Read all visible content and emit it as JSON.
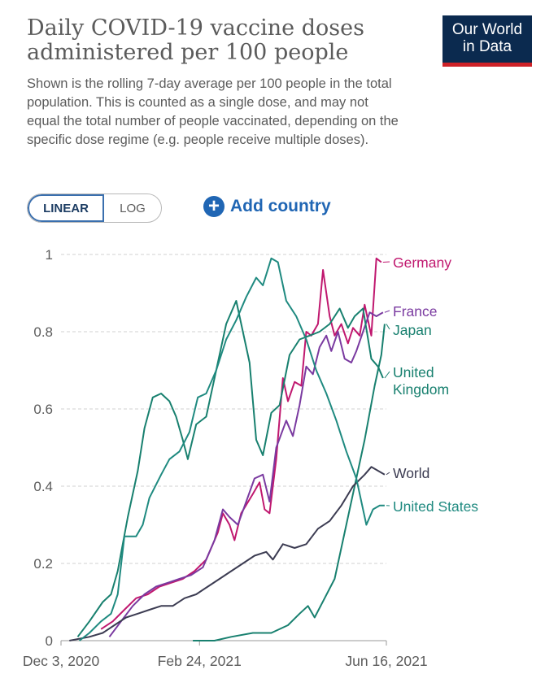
{
  "header": {
    "title": "Daily COVID-19 vaccine doses administered per 100 people",
    "subtitle": "Shown is the rolling 7-day average per 100 people in the total population. This is counted as a single dose, and may not equal the total number of people vaccinated, depending on the specific dose regime (e.g. people receive multiple doses).",
    "logo_line1": "Our World",
    "logo_line2": "in Data"
  },
  "controls": {
    "linear_label": "LINEAR",
    "log_label": "LOG",
    "add_country_label": "Add country",
    "plus_icon": "+"
  },
  "colors": {
    "germany": "#c0186f",
    "france": "#7a3aa0",
    "japan": "#18806f",
    "united_kingdom": "#18806f",
    "world": "#3c3c52",
    "united_states": "#1f8a80",
    "grid": "#d0d0d0",
    "text": "#5b5b5b"
  },
  "chart_data": {
    "type": "line",
    "x_start": "2020-12-03",
    "x_end": "2021-06-16",
    "x_tick_labels": [
      {
        "date": "2020-12-03",
        "label": "Dec 3, 2020"
      },
      {
        "date": "2021-02-24",
        "label": "Feb 24, 2021"
      },
      {
        "date": "2021-06-16",
        "label": "Jun 16, 2021"
      }
    ],
    "ylim": [
      0,
      1
    ],
    "y_ticks": [
      {
        "value": 0,
        "label": "0"
      },
      {
        "value": 0.2,
        "label": "0.2"
      },
      {
        "value": 0.4,
        "label": "0.4"
      },
      {
        "value": 0.6,
        "label": "0.6"
      },
      {
        "value": 0.8,
        "label": "0.8"
      },
      {
        "value": 1,
        "label": "1"
      }
    ],
    "grid": "horizontal dashed",
    "series": [
      {
        "name": "Germany",
        "color": "#c0186f",
        "points": [
          [
            "2020-12-27",
            0.03
          ],
          [
            "2021-01-03",
            0.05
          ],
          [
            "2021-01-10",
            0.08
          ],
          [
            "2021-01-17",
            0.11
          ],
          [
            "2021-01-24",
            0.12
          ],
          [
            "2021-01-31",
            0.14
          ],
          [
            "2021-02-07",
            0.15
          ],
          [
            "2021-02-14",
            0.16
          ],
          [
            "2021-02-21",
            0.18
          ],
          [
            "2021-02-28",
            0.21
          ],
          [
            "2021-03-07",
            0.28
          ],
          [
            "2021-03-10",
            0.33
          ],
          [
            "2021-03-14",
            0.3
          ],
          [
            "2021-03-17",
            0.26
          ],
          [
            "2021-03-21",
            0.33
          ],
          [
            "2021-03-28",
            0.38
          ],
          [
            "2021-04-01",
            0.41
          ],
          [
            "2021-04-04",
            0.34
          ],
          [
            "2021-04-07",
            0.33
          ],
          [
            "2021-04-11",
            0.47
          ],
          [
            "2021-04-15",
            0.68
          ],
          [
            "2021-04-18",
            0.62
          ],
          [
            "2021-04-22",
            0.67
          ],
          [
            "2021-04-26",
            0.66
          ],
          [
            "2021-04-29",
            0.8
          ],
          [
            "2021-05-02",
            0.79
          ],
          [
            "2021-05-06",
            0.82
          ],
          [
            "2021-05-09",
            0.96
          ],
          [
            "2021-05-13",
            0.84
          ],
          [
            "2021-05-16",
            0.79
          ],
          [
            "2021-05-20",
            0.82
          ],
          [
            "2021-05-24",
            0.77
          ],
          [
            "2021-05-27",
            0.81
          ],
          [
            "2021-05-31",
            0.79
          ],
          [
            "2021-06-03",
            0.87
          ],
          [
            "2021-06-07",
            0.79
          ],
          [
            "2021-06-10",
            0.99
          ],
          [
            "2021-06-13",
            0.98
          ]
        ]
      },
      {
        "name": "France",
        "color": "#7a3aa0",
        "points": [
          [
            "2021-01-01",
            0.01
          ],
          [
            "2021-01-08",
            0.05
          ],
          [
            "2021-01-15",
            0.09
          ],
          [
            "2021-01-22",
            0.12
          ],
          [
            "2021-01-29",
            0.14
          ],
          [
            "2021-02-05",
            0.15
          ],
          [
            "2021-02-12",
            0.16
          ],
          [
            "2021-02-19",
            0.17
          ],
          [
            "2021-02-26",
            0.19
          ],
          [
            "2021-03-05",
            0.26
          ],
          [
            "2021-03-10",
            0.34
          ],
          [
            "2021-03-14",
            0.32
          ],
          [
            "2021-03-19",
            0.3
          ],
          [
            "2021-03-24",
            0.36
          ],
          [
            "2021-03-29",
            0.42
          ],
          [
            "2021-04-03",
            0.43
          ],
          [
            "2021-04-07",
            0.36
          ],
          [
            "2021-04-11",
            0.5
          ],
          [
            "2021-04-17",
            0.57
          ],
          [
            "2021-04-21",
            0.53
          ],
          [
            "2021-04-25",
            0.61
          ],
          [
            "2021-04-29",
            0.71
          ],
          [
            "2021-05-03",
            0.69
          ],
          [
            "2021-05-07",
            0.76
          ],
          [
            "2021-05-11",
            0.79
          ],
          [
            "2021-05-14",
            0.75
          ],
          [
            "2021-05-18",
            0.8
          ],
          [
            "2021-05-22",
            0.73
          ],
          [
            "2021-05-26",
            0.72
          ],
          [
            "2021-05-29",
            0.75
          ],
          [
            "2021-06-02",
            0.8
          ],
          [
            "2021-06-06",
            0.85
          ],
          [
            "2021-06-10",
            0.84
          ],
          [
            "2021-06-14",
            0.85
          ]
        ]
      },
      {
        "name": "Japan",
        "color": "#18806f",
        "points": [
          [
            "2021-02-20",
            0.0
          ],
          [
            "2021-03-05",
            0.0
          ],
          [
            "2021-03-15",
            0.01
          ],
          [
            "2021-03-28",
            0.02
          ],
          [
            "2021-04-08",
            0.02
          ],
          [
            "2021-04-18",
            0.04
          ],
          [
            "2021-04-25",
            0.07
          ],
          [
            "2021-04-30",
            0.09
          ],
          [
            "2021-05-04",
            0.06
          ],
          [
            "2021-05-10",
            0.11
          ],
          [
            "2021-05-16",
            0.16
          ],
          [
            "2021-05-22",
            0.28
          ],
          [
            "2021-05-28",
            0.4
          ],
          [
            "2021-06-03",
            0.52
          ],
          [
            "2021-06-09",
            0.66
          ],
          [
            "2021-06-13",
            0.74
          ],
          [
            "2021-06-15",
            0.82
          ]
        ]
      },
      {
        "name": "United Kingdom",
        "color": "#18806f",
        "points": [
          [
            "2020-12-13",
            0.01
          ],
          [
            "2020-12-20",
            0.05
          ],
          [
            "2020-12-28",
            0.1
          ],
          [
            "2021-01-02",
            0.12
          ],
          [
            "2021-01-06",
            0.18
          ],
          [
            "2021-01-12",
            0.32
          ],
          [
            "2021-01-18",
            0.44
          ],
          [
            "2021-01-22",
            0.55
          ],
          [
            "2021-01-27",
            0.63
          ],
          [
            "2021-02-01",
            0.64
          ],
          [
            "2021-02-06",
            0.62
          ],
          [
            "2021-02-10",
            0.58
          ],
          [
            "2021-02-14",
            0.52
          ],
          [
            "2021-02-17",
            0.47
          ],
          [
            "2021-02-22",
            0.56
          ],
          [
            "2021-02-28",
            0.58
          ],
          [
            "2021-03-06",
            0.7
          ],
          [
            "2021-03-12",
            0.82
          ],
          [
            "2021-03-18",
            0.88
          ],
          [
            "2021-03-22",
            0.8
          ],
          [
            "2021-03-26",
            0.72
          ],
          [
            "2021-03-30",
            0.52
          ],
          [
            "2021-04-03",
            0.48
          ],
          [
            "2021-04-08",
            0.59
          ],
          [
            "2021-04-13",
            0.61
          ],
          [
            "2021-04-19",
            0.74
          ],
          [
            "2021-04-25",
            0.78
          ],
          [
            "2021-05-01",
            0.79
          ],
          [
            "2021-05-07",
            0.8
          ],
          [
            "2021-05-13",
            0.82
          ],
          [
            "2021-05-19",
            0.86
          ],
          [
            "2021-05-24",
            0.81
          ],
          [
            "2021-05-28",
            0.84
          ],
          [
            "2021-06-02",
            0.86
          ],
          [
            "2021-06-07",
            0.73
          ],
          [
            "2021-06-11",
            0.71
          ],
          [
            "2021-06-14",
            0.68
          ]
        ]
      },
      {
        "name": "World",
        "color": "#3c3c52",
        "points": [
          [
            "2020-12-08",
            0.0
          ],
          [
            "2020-12-20",
            0.01
          ],
          [
            "2020-12-28",
            0.02
          ],
          [
            "2021-01-04",
            0.04
          ],
          [
            "2021-01-11",
            0.06
          ],
          [
            "2021-01-18",
            0.07
          ],
          [
            "2021-01-25",
            0.08
          ],
          [
            "2021-02-01",
            0.09
          ],
          [
            "2021-02-08",
            0.09
          ],
          [
            "2021-02-15",
            0.11
          ],
          [
            "2021-02-22",
            0.12
          ],
          [
            "2021-03-01",
            0.14
          ],
          [
            "2021-03-08",
            0.16
          ],
          [
            "2021-03-15",
            0.18
          ],
          [
            "2021-03-22",
            0.2
          ],
          [
            "2021-03-29",
            0.22
          ],
          [
            "2021-04-05",
            0.23
          ],
          [
            "2021-04-09",
            0.21
          ],
          [
            "2021-04-15",
            0.25
          ],
          [
            "2021-04-22",
            0.24
          ],
          [
            "2021-04-29",
            0.25
          ],
          [
            "2021-05-06",
            0.29
          ],
          [
            "2021-05-13",
            0.31
          ],
          [
            "2021-05-20",
            0.35
          ],
          [
            "2021-05-27",
            0.4
          ],
          [
            "2021-06-03",
            0.43
          ],
          [
            "2021-06-07",
            0.45
          ],
          [
            "2021-06-11",
            0.44
          ],
          [
            "2021-06-15",
            0.43
          ]
        ]
      },
      {
        "name": "United States",
        "color": "#1f8a80",
        "points": [
          [
            "2020-12-14",
            0.0
          ],
          [
            "2020-12-20",
            0.02
          ],
          [
            "2020-12-27",
            0.05
          ],
          [
            "2021-01-02",
            0.07
          ],
          [
            "2021-01-06",
            0.12
          ],
          [
            "2021-01-10",
            0.27
          ],
          [
            "2021-01-17",
            0.27
          ],
          [
            "2021-01-21",
            0.3
          ],
          [
            "2021-01-25",
            0.37
          ],
          [
            "2021-02-01",
            0.43
          ],
          [
            "2021-02-06",
            0.47
          ],
          [
            "2021-02-12",
            0.49
          ],
          [
            "2021-02-18",
            0.54
          ],
          [
            "2021-02-23",
            0.63
          ],
          [
            "2021-02-28",
            0.64
          ],
          [
            "2021-03-06",
            0.7
          ],
          [
            "2021-03-12",
            0.78
          ],
          [
            "2021-03-18",
            0.83
          ],
          [
            "2021-03-24",
            0.89
          ],
          [
            "2021-03-30",
            0.94
          ],
          [
            "2021-04-03",
            0.92
          ],
          [
            "2021-04-08",
            0.99
          ],
          [
            "2021-04-12",
            0.98
          ],
          [
            "2021-04-17",
            0.88
          ],
          [
            "2021-04-23",
            0.84
          ],
          [
            "2021-04-29",
            0.78
          ],
          [
            "2021-05-05",
            0.7
          ],
          [
            "2021-05-11",
            0.64
          ],
          [
            "2021-05-17",
            0.57
          ],
          [
            "2021-05-23",
            0.49
          ],
          [
            "2021-05-29",
            0.42
          ],
          [
            "2021-06-04",
            0.3
          ],
          [
            "2021-06-08",
            0.34
          ],
          [
            "2021-06-12",
            0.35
          ],
          [
            "2021-06-15",
            0.35
          ]
        ]
      }
    ],
    "labels": [
      {
        "text": "Germany",
        "series": "Germany"
      },
      {
        "text": "France",
        "series": "France"
      },
      {
        "text": "Japan",
        "series": "Japan"
      },
      {
        "text": "United",
        "series": "United Kingdom"
      },
      {
        "text": "Kingdom",
        "series": "United Kingdom"
      },
      {
        "text": "World",
        "series": "World"
      },
      {
        "text": "United States",
        "series": "United States"
      }
    ]
  }
}
